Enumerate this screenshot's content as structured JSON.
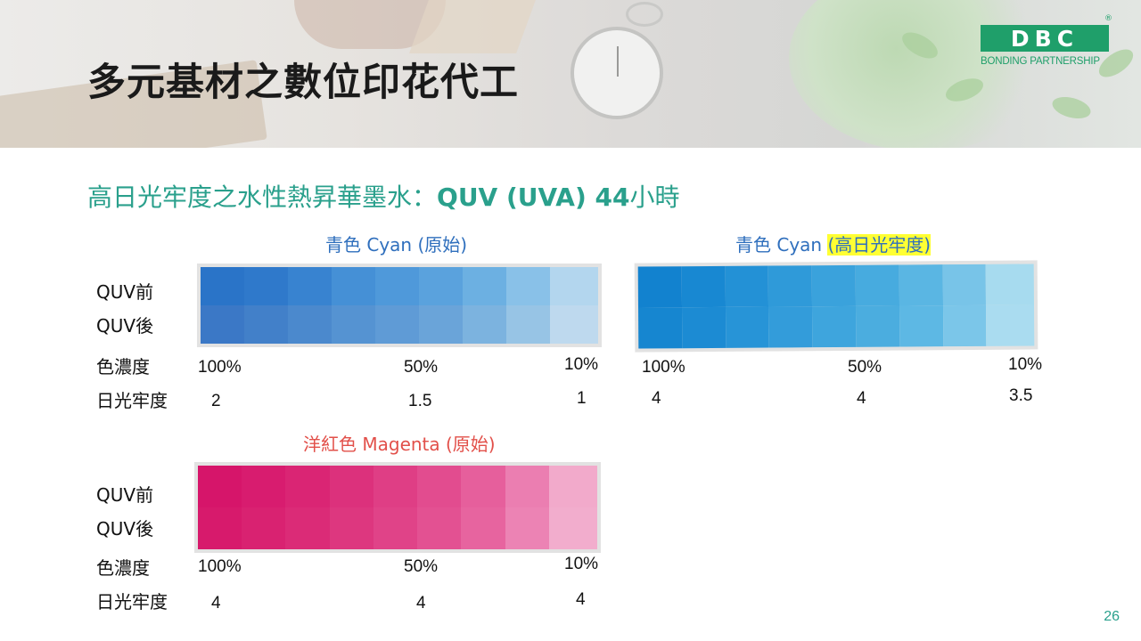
{
  "title": "多元基材之數位印花代工",
  "logo": {
    "mark": "DBC",
    "registered": "®",
    "subtitle": "BONDING PARTNERSHIP"
  },
  "subtitle_cn": "高日光牢度之水性熱昇華墨水：",
  "subtitle_test": "QUV (UVA) 44",
  "subtitle_unit": "小時",
  "panels": [
    {
      "title": "青色 Cyan (原始)",
      "title_color": "#2f6fbd",
      "row_labels": [
        "QUV前",
        "QUV後",
        "色濃度",
        "日光牢度"
      ],
      "concentration": [
        "100%",
        "50%",
        "10%"
      ],
      "lightfastness": [
        "2",
        "1.5",
        "1"
      ],
      "swatch_colors_before": [
        "#2a74c8",
        "#2f79cb",
        "#3883d0",
        "#4590d6",
        "#4f99da",
        "#5aa2dd",
        "#6cb0e2",
        "#89c1e8",
        "#b3d6ee"
      ],
      "swatch_colors_after": [
        "#3b78c6",
        "#4280c9",
        "#4b89cd",
        "#5593d2",
        "#5f9bd6",
        "#6aa4d9",
        "#7cb3df",
        "#97c4e5",
        "#bed9ee"
      ]
    },
    {
      "title_a": "青色 Cyan ",
      "title_b": "(高日光牢度)",
      "title_color": "#2f6fbd",
      "concentration": [
        "100%",
        "50%",
        "10%"
      ],
      "lightfastness": [
        "4",
        "4",
        "3.5"
      ],
      "swatch_colors_before": [
        "#1282cf",
        "#1888d2",
        "#2391d6",
        "#2f9ad9",
        "#3aa2dc",
        "#47abdf",
        "#5ab6e3",
        "#78c4e8",
        "#a7dbef"
      ],
      "swatch_colors_after": [
        "#1686d0",
        "#1c8bd3",
        "#2794d7",
        "#339cda",
        "#3ea5dd",
        "#4badDF",
        "#5db8e4",
        "#7bc6e9",
        "#aadcf0"
      ]
    },
    {
      "title": "洋紅色 Magenta (原始)",
      "title_color": "#e2504a",
      "row_labels": [
        "QUV前",
        "QUV後",
        "色濃度",
        "日光牢度"
      ],
      "concentration": [
        "100%",
        "50%",
        "10%"
      ],
      "lightfastness": [
        "4",
        "4",
        "4"
      ],
      "swatch_colors_before": [
        "#d6156a",
        "#d81c6f",
        "#da2574",
        "#dc317c",
        "#df3e85",
        "#e24c8f",
        "#e65f9c",
        "#eb7eb1",
        "#f2aacb"
      ],
      "swatch_colors_after": [
        "#d71a6c",
        "#d92271",
        "#db2b77",
        "#dd377f",
        "#e04388",
        "#e35192",
        "#e7649f",
        "#ec83b4",
        "#f2adcd"
      ]
    }
  ],
  "page_number": "26"
}
